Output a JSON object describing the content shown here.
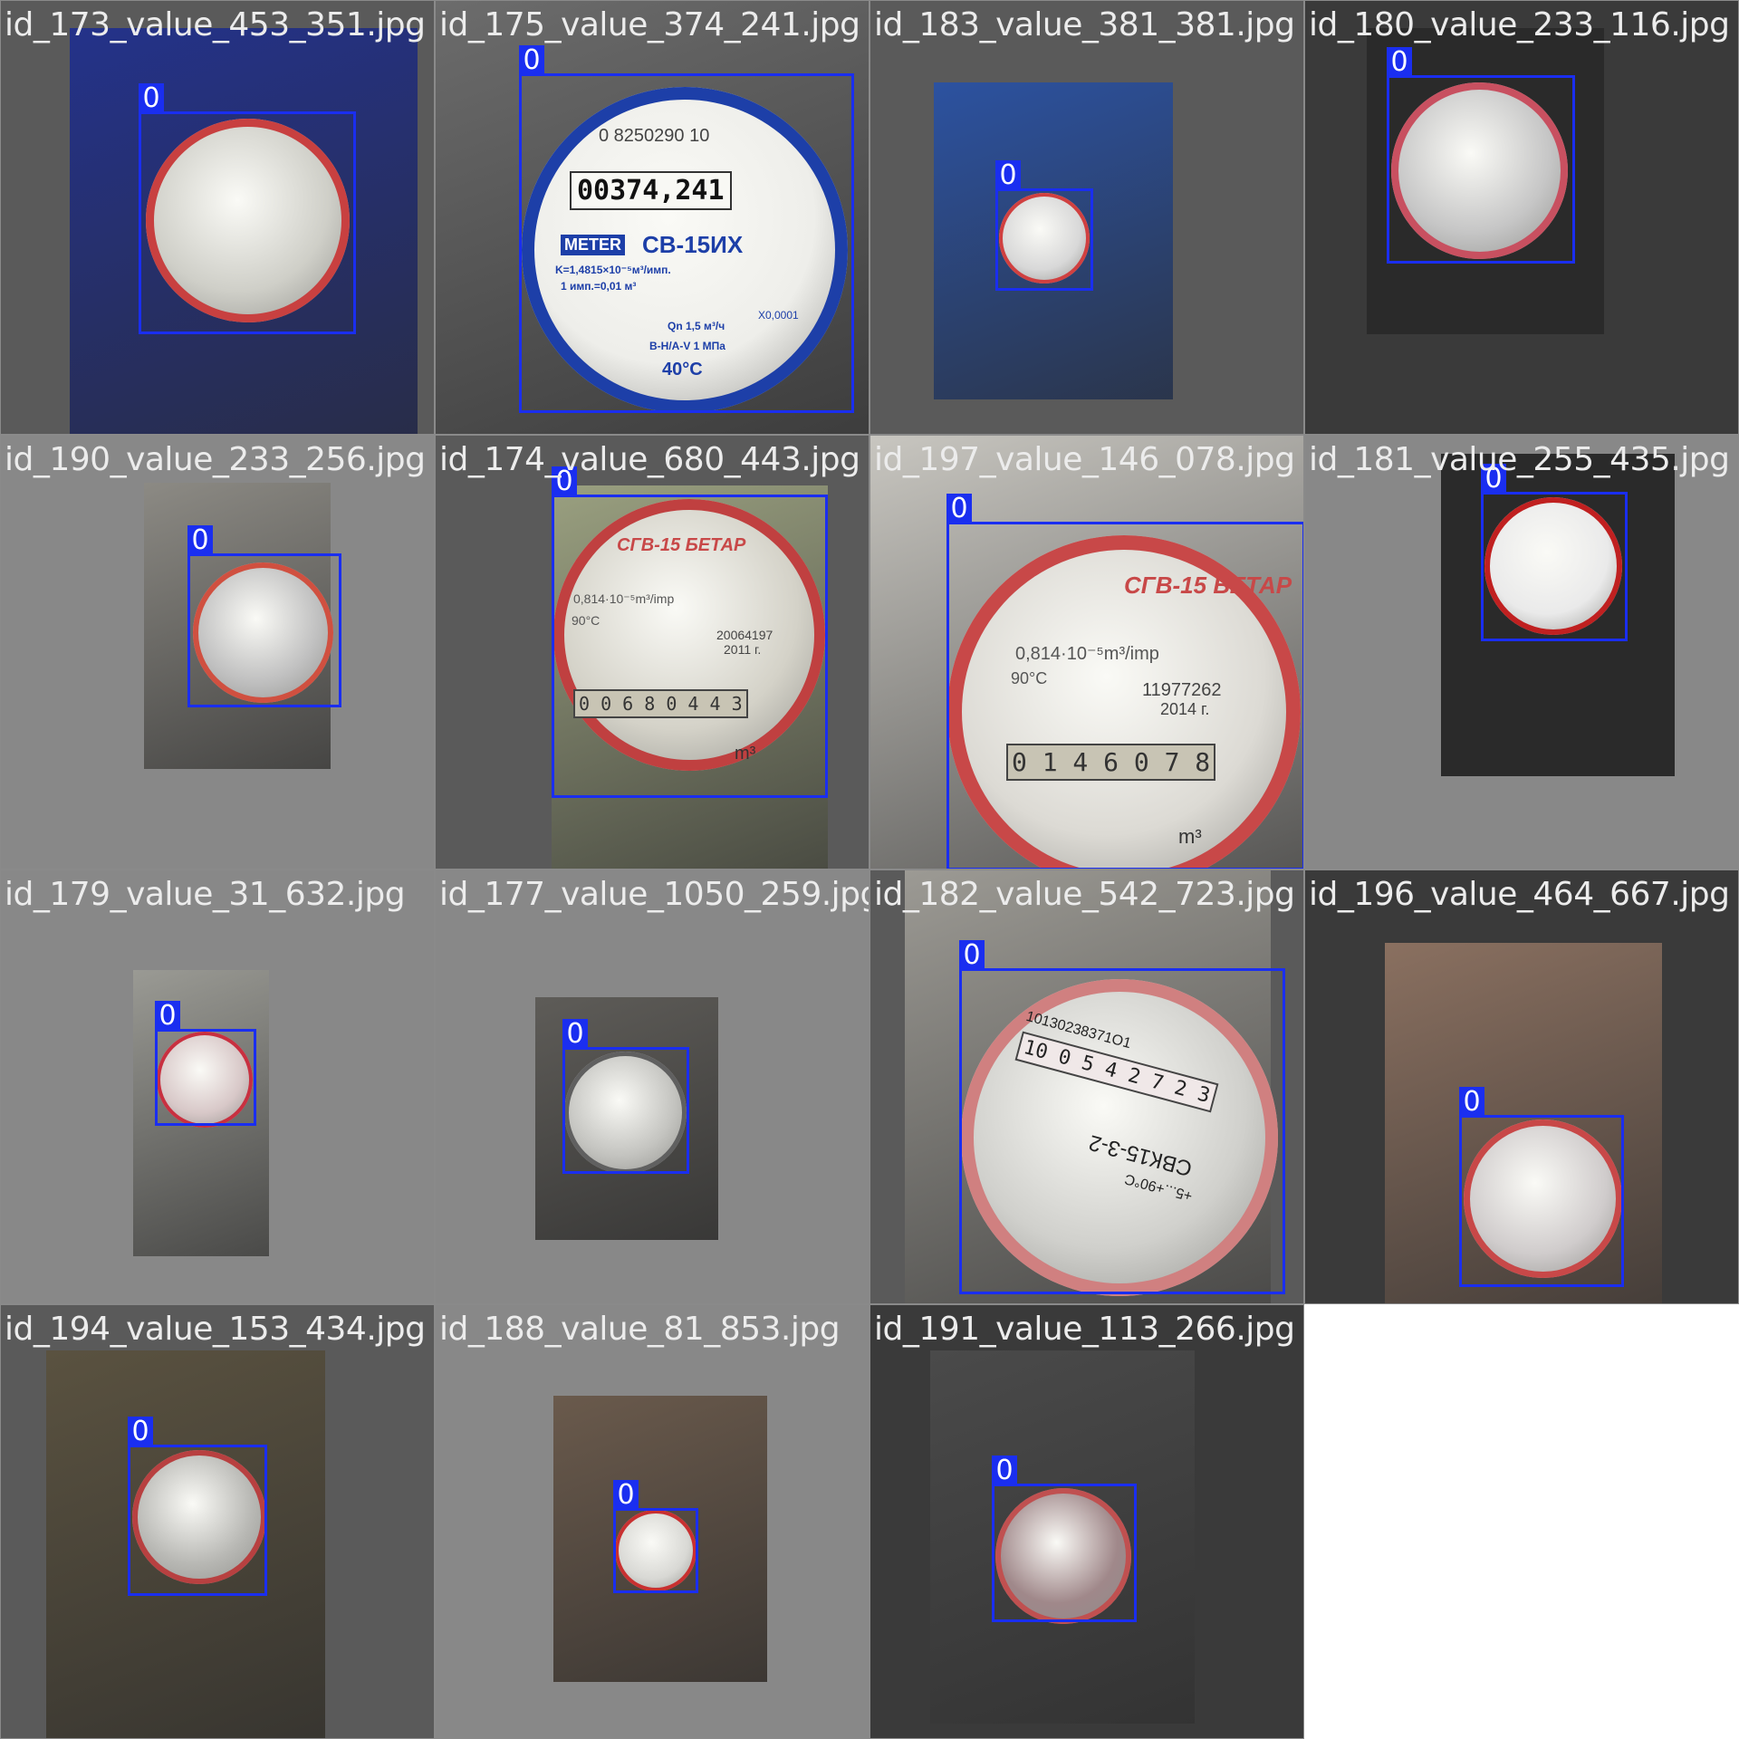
{
  "grid": {
    "columns": 4,
    "tiles": [
      {
        "title": "id_173_value_453_351.jpg",
        "label": "0",
        "bg": "#5a5a5a",
        "photo": "#24328a",
        "meter": "#cfcfc8",
        "accent": "#c84040"
      },
      {
        "title": "id_175_value_374_241.jpg",
        "label": "0",
        "bg": "#5a5a5a",
        "photo": "#6c6c6c",
        "meter": "#eeeeea",
        "accent": "#1d3fa8"
      },
      {
        "title": "id_183_value_381_381.jpg",
        "label": "0",
        "bg": "#5a5a5a",
        "photo": "#2c52a0",
        "meter": "#d8d8d8",
        "accent": "#d04040"
      },
      {
        "title": "id_180_value_233_116.jpg",
        "label": "0",
        "bg": "#3a3a3a",
        "photo": "#2a2a2a",
        "meter": "#c6c6c6",
        "accent": "#c85060"
      },
      {
        "title": "id_190_value_233_256.jpg",
        "label": "0",
        "bg": "#888888",
        "photo": "#8c8a84",
        "meter": "#c0c0c0",
        "accent": "#d05040"
      },
      {
        "title": "id_174_value_680_443.jpg",
        "label": "0",
        "bg": "#5a5a5a",
        "photo": "#9aa080",
        "meter": "#d4d2c8",
        "accent": "#c04040"
      },
      {
        "title": "id_197_value_146_078.jpg",
        "label": "0",
        "bg": "#b5b5b5",
        "photo": "#c8c6c0",
        "meter": "#dcdad4",
        "accent": "#c84848"
      },
      {
        "title": "id_181_value_255_435.jpg",
        "label": "0",
        "bg": "#888888",
        "photo": "#2a2a2a",
        "meter": "#eaeaea",
        "accent": "#c02020"
      },
      {
        "title": "id_179_value_31_632.jpg",
        "label": "0",
        "bg": "#888888",
        "photo": "#9a9a94",
        "meter": "#d8c8c8",
        "accent": "#c83040"
      },
      {
        "title": "id_177_value_1050_259.jpg",
        "label": "0",
        "bg": "#888888",
        "photo": "#5e5c58",
        "meter": "#c4c4c0",
        "accent": "#606060"
      },
      {
        "title": "id_182_value_542_723.jpg",
        "label": "0",
        "bg": "#5a5a5a",
        "photo": "#9c9a94",
        "meter": "#d0d0cc",
        "accent": "#d08080"
      },
      {
        "title": "id_196_value_464_667.jpg",
        "label": "0",
        "bg": "#3a3a3a",
        "photo": "#8a7060",
        "meter": "#d0cccc",
        "accent": "#c84848"
      },
      {
        "title": "id_194_value_153_434.jpg",
        "label": "0",
        "bg": "#5a5a5a",
        "photo": "#5a5240",
        "meter": "#b8b8b4",
        "accent": "#b84040"
      },
      {
        "title": "id_188_value_81_853.jpg",
        "label": "0",
        "bg": "#888888",
        "photo": "#6a5a4c",
        "meter": "#d8d8d4",
        "accent": "#c83030"
      },
      {
        "title": "id_191_value_113_266.jpg",
        "label": "0",
        "bg": "#3a3a3a",
        "photo": "#4a4a4a",
        "meter": "#a0888a",
        "accent": "#c05050"
      }
    ]
  },
  "meter_readouts": {
    "t1": "00374,241",
    "t6": "0 0 6 8 0 4 4 3",
    "t7": "0 1 4 6 0 7 8",
    "t11": "10 0 5 4 2 7 2 3"
  },
  "photo_text": {
    "t1_serial": "0 8250290 10",
    "t1_brand": "METER",
    "t1_model": "СВ-15ИХ",
    "t1_spec1": "K=1,4815×10⁻⁵м³/имп.",
    "t1_spec2": "1 имп.=0,01 м³",
    "t1_spec3": "Qn 1,5 м³/ч",
    "t1_spec4": "B-H/A-V 1 МПа",
    "t1_temp": "40°C",
    "t1_x": "X0,0001",
    "t6_brand": "СГВ-15 БЕТАР",
    "t6_spec": "0,814·10⁻⁵m³/imp",
    "t6_temp": "90°C",
    "t6_serial": "20064197",
    "t6_year": "2011 г.",
    "t6_unit": "m³",
    "t7_brand": "СГВ-15 БЕТАР",
    "t7_spec": "0,814·10⁻⁵m³/imp",
    "t7_temp": "90°C",
    "t7_serial": "11977262",
    "t7_year": "2014 г.",
    "t7_unit": "m³",
    "t11_serial": "10130238371O1",
    "t11_model": "СВК15-3-2",
    "t11_temp": "+5...+90°C"
  }
}
